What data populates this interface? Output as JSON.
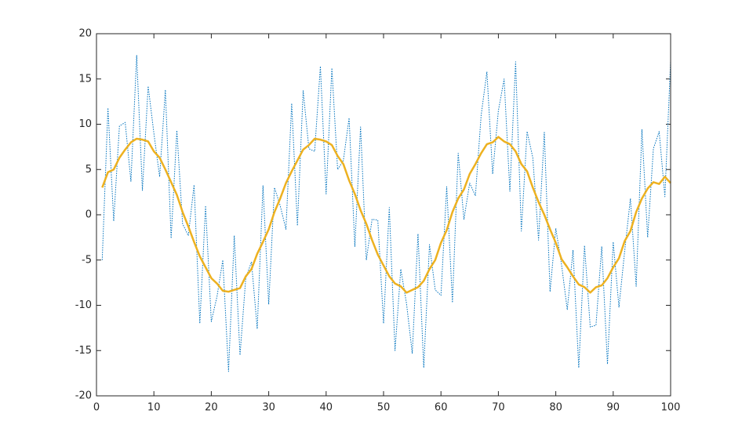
{
  "chart_data": {
    "type": "line",
    "x": [
      1,
      2,
      3,
      4,
      5,
      6,
      7,
      8,
      9,
      10,
      11,
      12,
      13,
      14,
      15,
      16,
      17,
      18,
      19,
      20,
      21,
      22,
      23,
      24,
      25,
      26,
      27,
      28,
      29,
      30,
      31,
      32,
      33,
      34,
      35,
      36,
      37,
      38,
      39,
      40,
      41,
      42,
      43,
      44,
      45,
      46,
      47,
      48,
      49,
      50,
      51,
      52,
      53,
      54,
      55,
      56,
      57,
      58,
      59,
      60,
      61,
      62,
      63,
      64,
      65,
      66,
      67,
      68,
      69,
      70,
      71,
      72,
      73,
      74,
      75,
      76,
      77,
      78,
      79,
      80,
      81,
      82,
      83,
      84,
      85,
      86,
      87,
      88,
      89,
      90,
      91,
      92,
      93,
      94,
      95,
      96,
      97,
      98,
      99,
      100
    ],
    "series": [
      {
        "color": "#0072bd",
        "linestyle": "dotted",
        "values": [
          -5,
          11.8,
          -0.7,
          9.8,
          10.2,
          3.7,
          17.6,
          2.7,
          14.2,
          9,
          4.2,
          13.8,
          -2.6,
          9.3,
          -1,
          -2.3,
          3.3,
          -12,
          1,
          -11.8,
          -9,
          -5,
          -17.3,
          -2.3,
          -15.5,
          -7,
          -5.2,
          -12.6,
          3.2,
          -9.9,
          3,
          1,
          -1.6,
          12.3,
          -1.2,
          13.7,
          7.3,
          7,
          16.4,
          2.3,
          16.2,
          5,
          6,
          10.7,
          -3.5,
          9.7,
          -5,
          -0.5,
          -0.6,
          -12,
          0.8,
          -15,
          -6,
          -9.8,
          -15.3,
          -2.1,
          -16.9,
          -3.3,
          -8.3,
          -8.9,
          3.1,
          -9.7,
          6.8,
          -0.5,
          3.5,
          2.1,
          11,
          15.8,
          4.5,
          11.5,
          15,
          2.6,
          16.9,
          -1.8,
          9.2,
          6.3,
          -2.8,
          9.1,
          -8.5,
          -1.5,
          -5.5,
          -10.5,
          -3.9,
          -16.9,
          -3.4,
          -12.4,
          -12.2,
          -3.5,
          -16.5,
          -3,
          -10.2,
          -4,
          1.8,
          -7.9,
          9.4,
          -2.5,
          7.3,
          9.2,
          2,
          17
        ]
      },
      {
        "color": "#edb120",
        "linestyle": "solid",
        "values": [
          3,
          4.7,
          5,
          6.3,
          7.2,
          8,
          8.4,
          8.3,
          8.1,
          7,
          6.3,
          5,
          3.6,
          2.2,
          0.3,
          -1.3,
          -3,
          -4.6,
          -5.8,
          -7,
          -7.6,
          -8.4,
          -8.5,
          -8.3,
          -8.1,
          -6.8,
          -6,
          -4.3,
          -3,
          -1.6,
          0.3,
          1.8,
          3.5,
          4.8,
          6,
          7.2,
          7.7,
          8.4,
          8.3,
          8.1,
          7.7,
          6.5,
          5.6,
          3.8,
          2.3,
          0.5,
          -1,
          -2.8,
          -4.4,
          -5.6,
          -6.8,
          -7.6,
          -7.9,
          -8.6,
          -8.3,
          -8,
          -7.3,
          -6,
          -5,
          -3.1,
          -1.7,
          0.3,
          1.8,
          2.8,
          4.5,
          5.6,
          6.8,
          7.8,
          8,
          8.6,
          8.1,
          7.8,
          7,
          5.6,
          4.8,
          3,
          1.4,
          0,
          -1.6,
          -3.1,
          -4.9,
          -5.8,
          -6.8,
          -7.7,
          -8,
          -8.6,
          -8,
          -7.8,
          -7,
          -5.8,
          -4.8,
          -2.9,
          -1.8,
          0.3,
          1.8,
          2.9,
          3.6,
          3.4,
          4.2,
          3.5
        ]
      }
    ],
    "xlim": [
      0,
      100
    ],
    "xticks": [
      0,
      10,
      20,
      30,
      40,
      50,
      60,
      70,
      80,
      90,
      100
    ],
    "ylim": [
      -20,
      20
    ],
    "yticks": [
      -20,
      -15,
      -10,
      -5,
      0,
      5,
      10,
      15,
      20
    ]
  }
}
